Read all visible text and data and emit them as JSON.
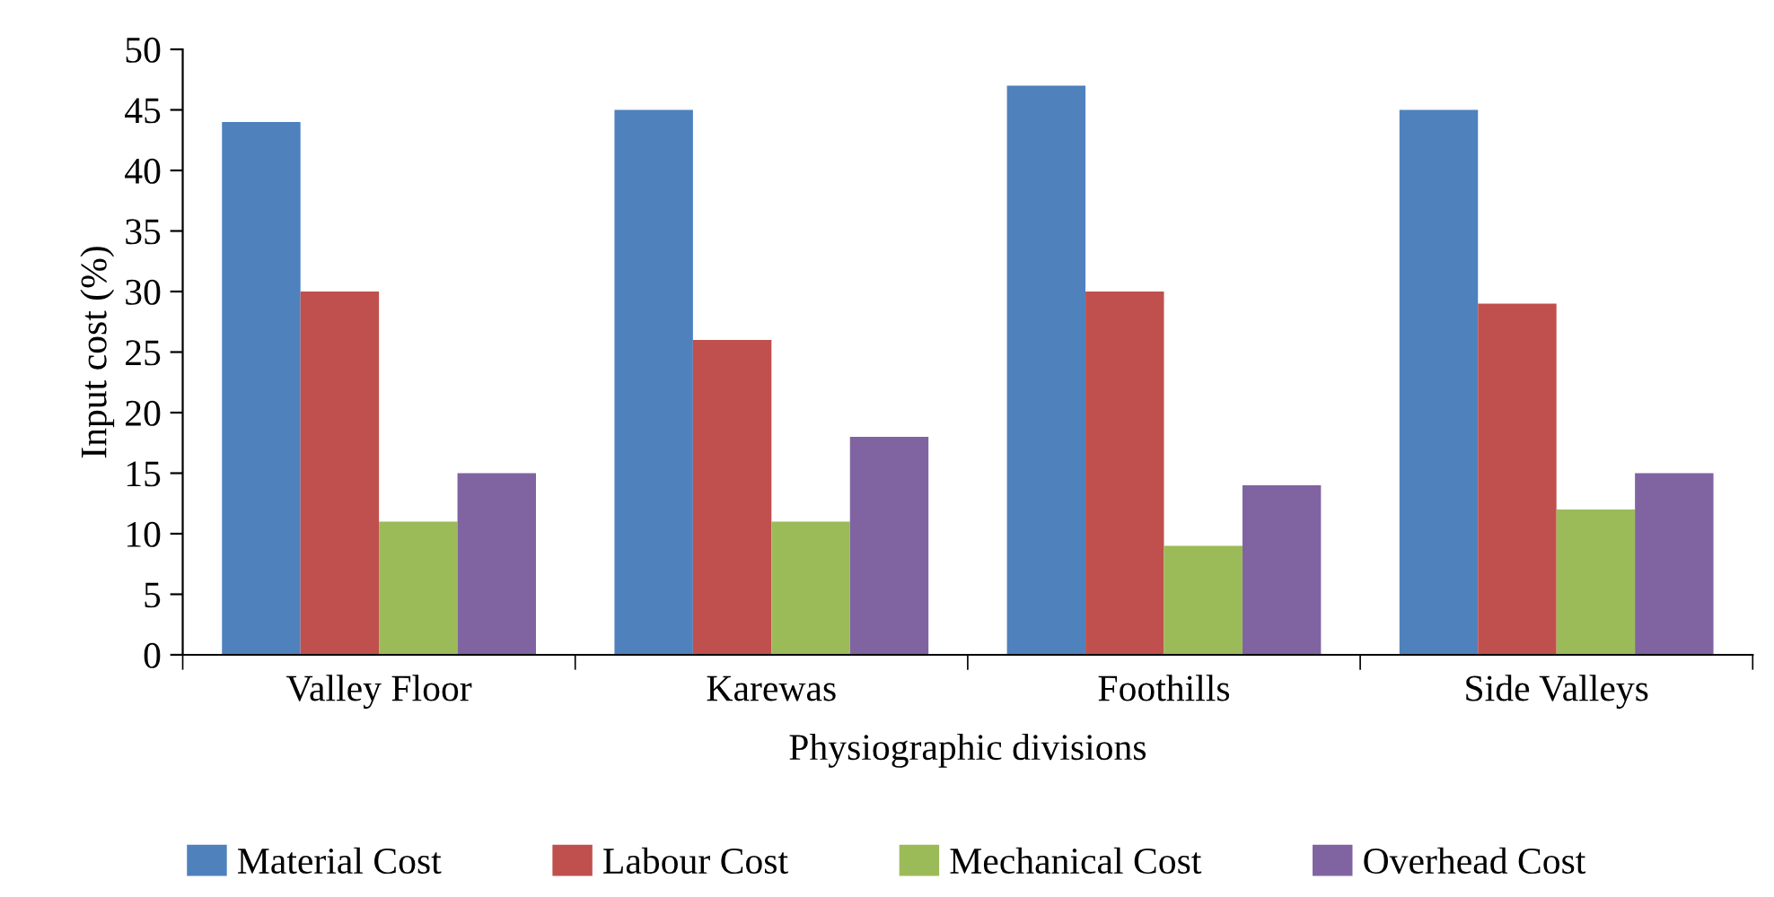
{
  "chart_data": {
    "type": "bar",
    "xlabel": "Physiographic divisions",
    "ylabel": "Input cost (%)",
    "categories": [
      "Valley Floor",
      "Karewas",
      "Foothills",
      "Side Valleys"
    ],
    "series": [
      {
        "name": "Material Cost",
        "color": "#4f81bd",
        "values": [
          44,
          45,
          47,
          45
        ]
      },
      {
        "name": "Labour Cost",
        "color": "#c0504d",
        "values": [
          30,
          26,
          30,
          29
        ]
      },
      {
        "name": "Mechanical Cost",
        "color": "#9bbb59",
        "values": [
          11,
          11,
          9,
          12
        ]
      },
      {
        "name": "Overhead Cost",
        "color": "#8064a2",
        "values": [
          15,
          18,
          14,
          15
        ]
      }
    ],
    "ylim": [
      0,
      50
    ],
    "yticks": [
      0,
      5,
      10,
      15,
      20,
      25,
      30,
      35,
      40,
      45,
      50
    ],
    "grid": false,
    "legend": "bottom"
  }
}
